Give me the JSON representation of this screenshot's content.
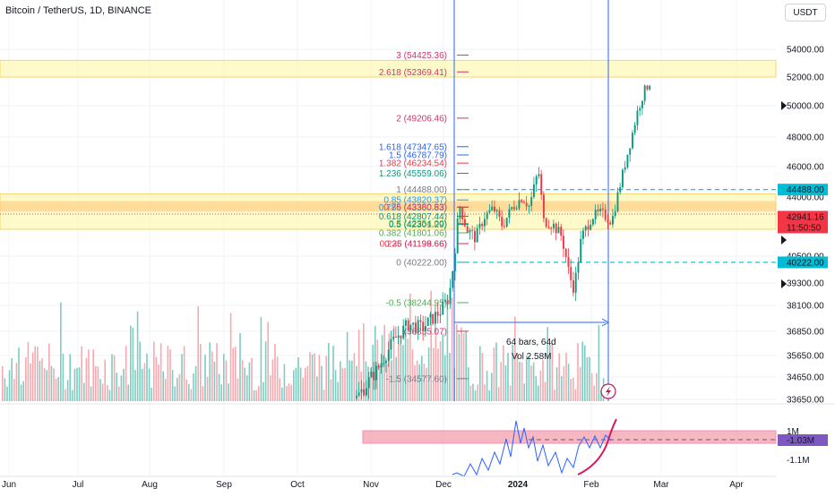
{
  "header": {
    "symbol": "Bitcoin / TetherUS, 1D, BINANCE",
    "currency_button": "USDT"
  },
  "price_axis": {
    "ticks": [
      "54000.00",
      "52000.00",
      "50000.00",
      "48000.00",
      "46000.00",
      "44000.00",
      "42000.00",
      "40500.00",
      "39300.00",
      "38100.00",
      "36850.00",
      "35650.00",
      "34650.00",
      "33650.00"
    ],
    "ticks_values": [
      54000,
      52000,
      50000,
      48000,
      46000,
      44000,
      42000,
      40500,
      39300,
      38100,
      36850,
      35650,
      34650,
      33650
    ],
    "badges": [
      {
        "name": "high-line-badge",
        "text": "44488.00",
        "value": 44488,
        "bg": "#00bcd4",
        "fg": "#131722"
      },
      {
        "name": "low-line-badge",
        "text": "40222.00",
        "value": 40222,
        "bg": "#00bcd4",
        "fg": "#131722"
      },
      {
        "name": "last-price-badge",
        "text": "42941.16",
        "value": 42941,
        "bg": "#f23645",
        "fg": "#ffffff"
      },
      {
        "name": "countdown-badge",
        "text": "11:50:50",
        "value": 42941,
        "bg": "#f23645",
        "fg": "#ffffff"
      }
    ]
  },
  "time_axis": {
    "labels": [
      "Jun",
      "Jul",
      "Aug",
      "Sep",
      "Oct",
      "Nov",
      "Dec",
      "2024",
      "Feb",
      "Mar",
      "Apr"
    ],
    "positions": [
      10,
      87,
      167,
      250,
      332,
      414,
      495,
      578,
      660,
      738,
      822
    ]
  },
  "fib_levels": [
    {
      "text": "3 (54425.36)",
      "price": 54425,
      "color": "#d6336c"
    },
    {
      "text": "2.618 (52369.41)",
      "price": 52369,
      "color": "#d6336c"
    },
    {
      "text": "2 (49206.46)",
      "price": 49206,
      "color": "#d6336c"
    },
    {
      "text": "1.618 (47347.65)",
      "price": 47347,
      "color": "#2962ff"
    },
    {
      "text": "1.5 (46787.79)",
      "price": 46787,
      "color": "#2962ff"
    },
    {
      "text": "1.382 (46234.54)",
      "price": 46234,
      "color": "#f23645"
    },
    {
      "text": "1.236 (45559.06)",
      "price": 45559,
      "color": "#089981"
    },
    {
      "text": "1 (44488.00)",
      "price": 44488,
      "color": "#787b86"
    },
    {
      "text": "0.85 (43820.37)",
      "price": 43820,
      "color": "#2196f3"
    },
    {
      "text": "0.786 (43360.83)",
      "price": 43360,
      "color": "#2196f3"
    },
    {
      "text": "0.75 (43380.83)",
      "price": 43380,
      "color": "#f23645"
    },
    {
      "text": "0.618 (42807.44)",
      "price": 42807,
      "color": "#089981"
    },
    {
      "text": "0.5 (42354.00)",
      "price": 42354,
      "color": "#4caf50"
    },
    {
      "text": "0.5 (42301.29)",
      "price": 42301,
      "color": "#089981"
    },
    {
      "text": "0.382 (41801.06)",
      "price": 41801,
      "color": "#4caf50"
    },
    {
      "text": "0.236 (41199.66)",
      "price": 41199,
      "color": "#f23645"
    },
    {
      "text": "0.25 (41198.66)",
      "price": 41198,
      "color": "#d6336c"
    },
    {
      "text": "0 (40222.00)",
      "price": 40222,
      "color": "#787b86"
    },
    {
      "text": "-0.5 (38244.95)",
      "price": 38244,
      "color": "#4caf50"
    },
    {
      "text": "(36855.07)",
      "price": 36855,
      "color": "#d6336c"
    },
    {
      "text": "-1.5 (34577.60)",
      "price": 34577,
      "color": "#787b86"
    }
  ],
  "measure": {
    "line1": "64 bars, 64d",
    "line2": "Vol 2.58M"
  },
  "indicator": {
    "ticks": [
      "1M",
      "-1.1M"
    ],
    "badge": "-1.03M",
    "badge_bg": "#7e57c2"
  },
  "colors": {
    "up": "#089981",
    "down": "#f23645",
    "vol_up": "#7fccc0",
    "vol_down": "#f7a9b0",
    "zone_yellow": "#fff59d",
    "zone_orange": "#ffcc80",
    "cyan": "#00bcd4",
    "blue": "#2962ff",
    "indicator_line": "#2962ff",
    "indicator_pink": "#f4a5b3",
    "flash": "#b71c5c"
  },
  "icons": {
    "flash": "lightning-icon"
  },
  "chart_data": {
    "type": "candlestick",
    "yunit": "USDT",
    "ylim": [
      33650,
      55200
    ],
    "fib_anchor_low": 40222,
    "fib_anchor_high": 44488,
    "last_price": 42941.16,
    "horizontal_lines": [
      44488,
      40222
    ],
    "zones": [
      [
        52000,
        53200
      ],
      [
        42000,
        44200
      ],
      [
        43100,
        43750
      ]
    ]
  }
}
